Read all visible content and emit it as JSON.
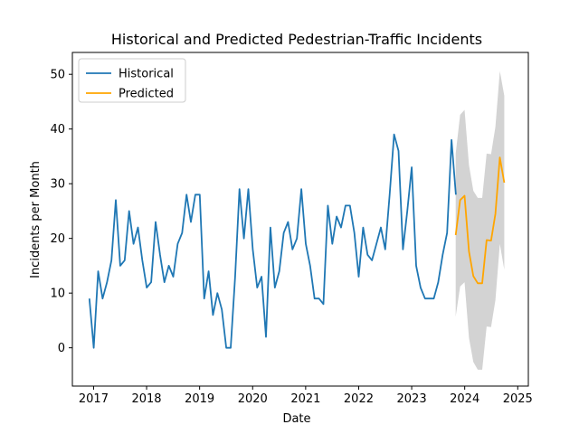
{
  "chart_data": {
    "type": "line",
    "title": "Historical and Predicted Pedestrian-Traffic Incidents",
    "xlabel": "Date",
    "ylabel": "Incidents per Month",
    "xlim": [
      2016.6,
      2025.2
    ],
    "ylim": [
      -7,
      54
    ],
    "x_ticks": [
      2017,
      2018,
      2019,
      2020,
      2021,
      2022,
      2023,
      2024,
      2025
    ],
    "y_ticks": [
      0,
      10,
      20,
      30,
      40,
      50
    ],
    "legend": {
      "position": "top-left"
    },
    "series": [
      {
        "name": "Historical",
        "color": "#1f77b4",
        "start": 2016.92,
        "step": 0.0833,
        "values": [
          9,
          0,
          14,
          9,
          12,
          16,
          27,
          15,
          16,
          25,
          19,
          22,
          16,
          11,
          12,
          23,
          17,
          12,
          15,
          13,
          19,
          21,
          28,
          23,
          28,
          28,
          9,
          14,
          6,
          10,
          7,
          0,
          0,
          13,
          29,
          20,
          29,
          18,
          11,
          13,
          2,
          22,
          11,
          14,
          21,
          23,
          18,
          20,
          29,
          19,
          15,
          9,
          9,
          8,
          26,
          19,
          24,
          22,
          26,
          26,
          21,
          13,
          22,
          17,
          16,
          19,
          22,
          18,
          28,
          39,
          36,
          18,
          25,
          33,
          15,
          11,
          9,
          9,
          9,
          12,
          17,
          21,
          38,
          28
        ]
      },
      {
        "name": "Predicted",
        "color": "#ffa500",
        "start": 2023.83,
        "step": 0.0833,
        "values": [
          20.6,
          27.0,
          27.8,
          17.6,
          13.1,
          11.8,
          11.8,
          19.7,
          19.6,
          24.5,
          34.8,
          30.2
        ],
        "lower": [
          5.7,
          11.2,
          12.0,
          1.8,
          -2.6,
          -4.0,
          -4.0,
          3.9,
          3.8,
          8.7,
          19.0,
          14.3
        ],
        "upper": [
          35.5,
          42.6,
          43.5,
          33.4,
          28.7,
          27.4,
          27.4,
          35.5,
          35.4,
          40.4,
          50.6,
          46.1
        ]
      }
    ]
  }
}
